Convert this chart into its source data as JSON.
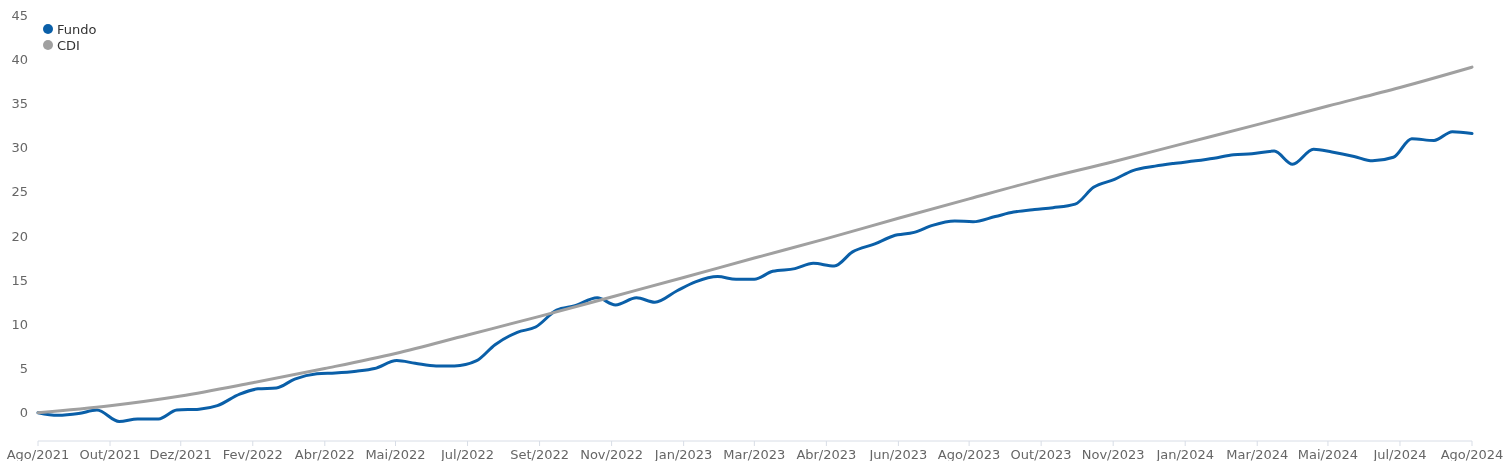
{
  "chart_data": {
    "type": "line",
    "xlim": [
      "2021-08-31",
      "2024-08-30"
    ],
    "ylim": [
      -3.2,
      45
    ],
    "yticks": [
      0,
      5,
      10,
      15,
      20,
      25,
      30,
      35,
      40,
      45
    ],
    "xticks": [
      {
        "value": "2021-08-31",
        "label": "Ago/2021"
      },
      {
        "value": "2021-10-25",
        "label": "Out/2021"
      },
      {
        "value": "2021-12-18",
        "label": "Dez/2021"
      },
      {
        "value": "2022-02-11",
        "label": "Fev/2022"
      },
      {
        "value": "2022-04-07",
        "label": "Abr/2022"
      },
      {
        "value": "2022-05-31",
        "label": "Mai/2022"
      },
      {
        "value": "2022-07-25",
        "label": "Jul/2022"
      },
      {
        "value": "2022-09-18",
        "label": "Set/2022"
      },
      {
        "value": "2022-11-12",
        "label": "Nov/2022"
      },
      {
        "value": "2023-01-06",
        "label": "Jan/2023"
      },
      {
        "value": "2023-03-01",
        "label": "Mar/2023"
      },
      {
        "value": "2023-04-25",
        "label": "Abr/2023"
      },
      {
        "value": "2023-06-19",
        "label": "Jun/2023"
      },
      {
        "value": "2023-08-12",
        "label": "Ago/2023"
      },
      {
        "value": "2023-10-06",
        "label": "Out/2023"
      },
      {
        "value": "2023-11-30",
        "label": "Nov/2023"
      },
      {
        "value": "2024-01-24",
        "label": "Jan/2024"
      },
      {
        "value": "2024-03-19",
        "label": "Mar/2024"
      },
      {
        "value": "2024-05-12",
        "label": "Mai/2024"
      },
      {
        "value": "2024-07-06",
        "label": "Jul/2024"
      },
      {
        "value": "2024-08-30",
        "label": "Ago/2024"
      }
    ],
    "grid": false,
    "legend": "top left",
    "marker": "none",
    "line_style": "solid",
    "series": [
      {
        "name": "Fundo",
        "color": "#0a5fa8",
        "x": [
          "2021-08-31",
          "2021-09-15",
          "2021-10-01",
          "2021-10-15",
          "2021-11-01",
          "2021-11-15",
          "2021-12-01",
          "2021-12-15",
          "2022-01-01",
          "2022-01-15",
          "2022-02-01",
          "2022-02-15",
          "2022-03-01",
          "2022-03-15",
          "2022-04-01",
          "2022-04-15",
          "2022-05-01",
          "2022-05-15",
          "2022-06-01",
          "2022-06-15",
          "2022-07-01",
          "2022-07-15",
          "2022-08-01",
          "2022-08-15",
          "2022-09-01",
          "2022-09-15",
          "2022-10-01",
          "2022-10-15",
          "2022-11-01",
          "2022-11-15",
          "2022-12-01",
          "2022-12-15",
          "2023-01-01",
          "2023-01-15",
          "2023-02-01",
          "2023-02-15",
          "2023-03-01",
          "2023-03-15",
          "2023-04-01",
          "2023-04-15",
          "2023-05-01",
          "2023-05-15",
          "2023-06-01",
          "2023-06-15",
          "2023-07-01",
          "2023-07-15",
          "2023-08-01",
          "2023-08-15",
          "2023-09-01",
          "2023-09-15",
          "2023-10-01",
          "2023-10-15",
          "2023-11-01",
          "2023-11-15",
          "2023-12-01",
          "2023-12-15",
          "2024-01-01",
          "2024-01-15",
          "2024-02-01",
          "2024-02-15",
          "2024-03-01",
          "2024-03-15",
          "2024-04-01",
          "2024-04-15",
          "2024-05-01",
          "2024-05-15",
          "2024-06-01",
          "2024-06-15",
          "2024-07-01",
          "2024-07-15",
          "2024-08-01",
          "2024-08-15",
          "2024-08-30"
        ],
        "values": [
          0,
          -0.3,
          -0.1,
          0.3,
          -1.0,
          -0.7,
          -0.7,
          0.3,
          0.4,
          0.8,
          2.1,
          2.7,
          2.8,
          3.8,
          4.4,
          4.5,
          4.7,
          5.0,
          5.9,
          5.6,
          5.3,
          5.3,
          5.9,
          7.7,
          9.1,
          9.7,
          11.6,
          12.1,
          13.0,
          12.2,
          13.0,
          12.5,
          13.8,
          14.8,
          15.4,
          15.1,
          15.1,
          16.0,
          16.3,
          16.9,
          16.6,
          18.2,
          19.1,
          20.0,
          20.4,
          21.2,
          21.7,
          21.6,
          22.2,
          22.7,
          23.0,
          23.2,
          23.6,
          25.5,
          26.4,
          27.4,
          27.9,
          28.2,
          28.5,
          28.8,
          29.2,
          29.3,
          29.6,
          28.1,
          29.8,
          29.5,
          29.0,
          28.5,
          28.9,
          31.0,
          30.8,
          31.8,
          31.6
        ]
      },
      {
        "name": "CDI",
        "color": "#a0a0a0",
        "x": [
          "2021-08-31",
          "2021-10-25",
          "2021-12-18",
          "2022-02-11",
          "2022-04-07",
          "2022-05-31",
          "2022-07-25",
          "2022-09-18",
          "2022-11-12",
          "2023-01-06",
          "2023-03-01",
          "2023-04-25",
          "2023-06-19",
          "2023-08-12",
          "2023-10-06",
          "2023-11-30",
          "2024-01-24",
          "2024-03-19",
          "2024-05-12",
          "2024-07-06",
          "2024-08-30"
        ],
        "values": [
          0,
          0.8,
          1.9,
          3.4,
          5.0,
          6.7,
          8.8,
          10.9,
          13.1,
          15.3,
          17.5,
          19.7,
          22.0,
          24.2,
          26.4,
          28.4,
          30.5,
          32.6,
          34.7,
          36.8,
          39.1
        ]
      }
    ]
  }
}
